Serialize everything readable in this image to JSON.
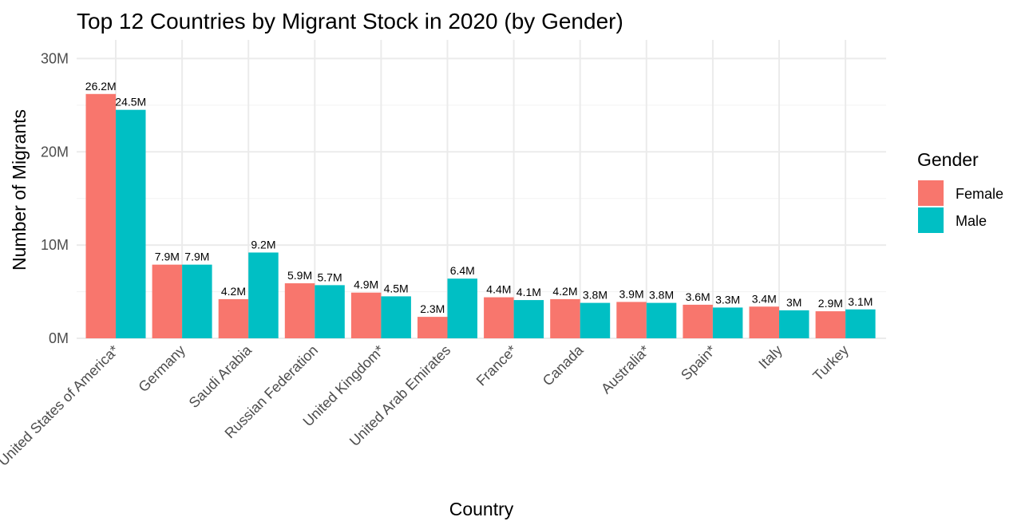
{
  "chart_data": {
    "type": "bar",
    "title": "Top 12 Countries by Migrant Stock in 2020 (by Gender)",
    "xlabel": "Country",
    "ylabel": "Number of Migrants",
    "ylim": [
      0,
      32000000
    ],
    "y_ticks": [
      {
        "value": 0,
        "label": "0M"
      },
      {
        "value": 10000000,
        "label": "10M"
      },
      {
        "value": 20000000,
        "label": "20M"
      },
      {
        "value": 30000000,
        "label": "30M"
      }
    ],
    "grid": true,
    "legend": {
      "title": "Gender",
      "position": "right"
    },
    "categories": [
      "United States of America*",
      "Germany",
      "Saudi Arabia",
      "Russian Federation",
      "United Kingdom*",
      "United Arab Emirates",
      "France*",
      "Canada",
      "Australia*",
      "Spain*",
      "Italy",
      "Turkey"
    ],
    "series": [
      {
        "name": "Female",
        "color": "#F8766D",
        "values": [
          26200000,
          7900000,
          4200000,
          5900000,
          4900000,
          2300000,
          4400000,
          4200000,
          3900000,
          3600000,
          3400000,
          2900000
        ],
        "labels": [
          "26.2M",
          "7.9M",
          "4.2M",
          "5.9M",
          "4.9M",
          "2.3M",
          "4.4M",
          "4.2M",
          "3.9M",
          "3.6M",
          "3.4M",
          "2.9M"
        ]
      },
      {
        "name": "Male",
        "color": "#00BFC4",
        "values": [
          24500000,
          7900000,
          9200000,
          5700000,
          4500000,
          6400000,
          4100000,
          3800000,
          3800000,
          3300000,
          3000000,
          3100000
        ],
        "labels": [
          "24.5M",
          "7.9M",
          "9.2M",
          "5.7M",
          "4.5M",
          "6.4M",
          "4.1M",
          "3.8M",
          "3.8M",
          "3.3M",
          "3M",
          "3.1M"
        ]
      }
    ]
  }
}
